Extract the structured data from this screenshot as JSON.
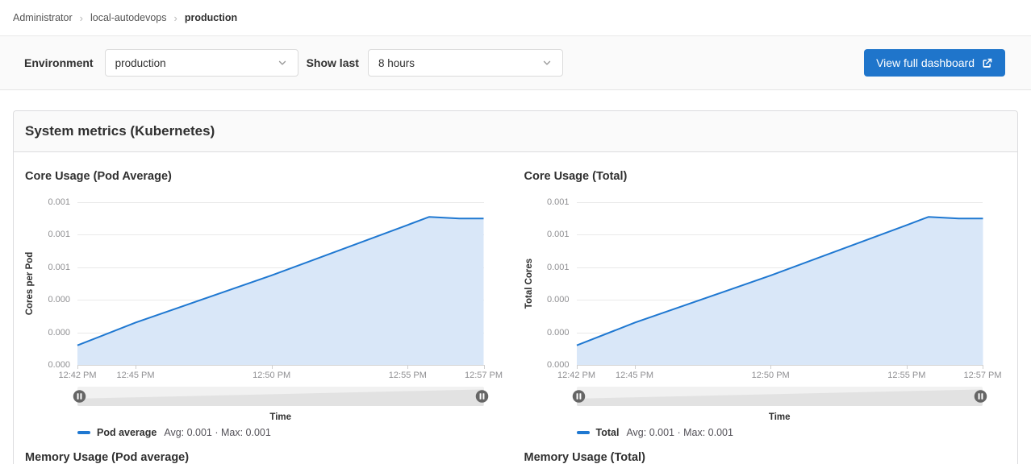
{
  "breadcrumb": {
    "items": [
      "Administrator",
      "local-autodevops",
      "production"
    ]
  },
  "filters": {
    "environment_label": "Environment",
    "environment_value": "production",
    "show_last_label": "Show last",
    "show_last_value": "8 hours",
    "view_dashboard_label": "View full dashboard"
  },
  "panel": {
    "title": "System metrics (Kubernetes)"
  },
  "colors": {
    "accent": "#1f75cb",
    "line": "#1f78d1",
    "area_fill": "#d9e7f8",
    "slider_handle": "#666666"
  },
  "icons": {
    "breadcrumb_separator": "›",
    "chevron_down": "chevron-down",
    "external_link": "external-link",
    "slider_handle": "pause-circle"
  },
  "chart_data": [
    {
      "type": "area",
      "title": "Core Usage (Pod Average)",
      "ylabel": "Cores per Pod",
      "xlabel": "Time",
      "ylim": [
        0,
        0.001
      ],
      "yticks": [
        "0.001",
        "0.001",
        "0.001",
        "0.000",
        "0.000",
        "0.000"
      ],
      "xticks": [
        {
          "label": "12:42 PM",
          "pos": 0
        },
        {
          "label": "12:45 PM",
          "pos": 0.143
        },
        {
          "label": "12:50 PM",
          "pos": 0.478
        },
        {
          "label": "12:55 PM",
          "pos": 0.813
        },
        {
          "label": "12:57 PM",
          "pos": 1
        }
      ],
      "points": [
        {
          "x": 0,
          "v": 0.00012
        },
        {
          "x": 0.143,
          "v": 0.00026
        },
        {
          "x": 0.478,
          "v": 0.00055
        },
        {
          "x": 0.813,
          "v": 0.00086
        },
        {
          "x": 0.866,
          "v": 0.00091
        },
        {
          "x": 0.94,
          "v": 0.0009
        },
        {
          "x": 1,
          "v": 0.0009
        }
      ],
      "legend": {
        "name": "Pod average",
        "stats": "Avg: 0.001 · Max: 0.001"
      }
    },
    {
      "type": "area",
      "title": "Core Usage (Total)",
      "ylabel": "Total Cores",
      "xlabel": "Time",
      "ylim": [
        0,
        0.001
      ],
      "yticks": [
        "0.001",
        "0.001",
        "0.001",
        "0.000",
        "0.000",
        "0.000"
      ],
      "xticks": [
        {
          "label": "12:42 PM",
          "pos": 0
        },
        {
          "label": "12:45 PM",
          "pos": 0.143
        },
        {
          "label": "12:50 PM",
          "pos": 0.478
        },
        {
          "label": "12:55 PM",
          "pos": 0.813
        },
        {
          "label": "12:57 PM",
          "pos": 1
        }
      ],
      "points": [
        {
          "x": 0,
          "v": 0.00012
        },
        {
          "x": 0.143,
          "v": 0.00026
        },
        {
          "x": 0.478,
          "v": 0.00055
        },
        {
          "x": 0.813,
          "v": 0.00086
        },
        {
          "x": 0.866,
          "v": 0.00091
        },
        {
          "x": 0.94,
          "v": 0.0009
        },
        {
          "x": 1,
          "v": 0.0009
        }
      ],
      "legend": {
        "name": "Total",
        "stats": "Avg: 0.001 · Max: 0.001"
      }
    }
  ],
  "memory_row": {
    "left_title": "Memory Usage (Pod average)",
    "right_title": "Memory Usage (Total)"
  }
}
